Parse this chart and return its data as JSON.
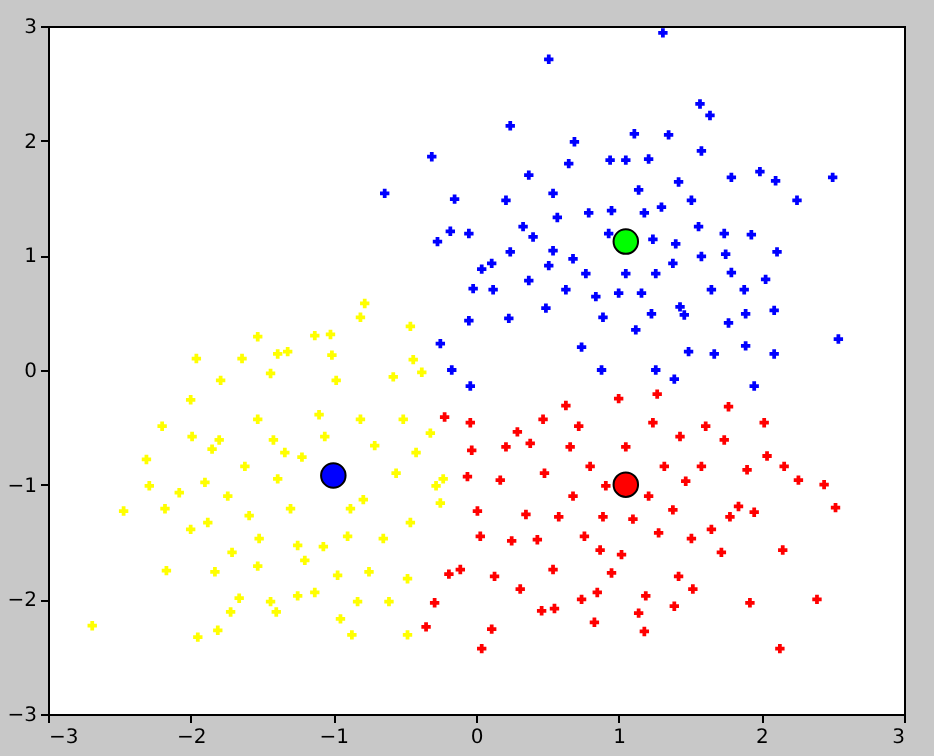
{
  "chart_data": {
    "type": "scatter",
    "xlim": [
      -3,
      3
    ],
    "ylim": [
      -3,
      3
    ],
    "xticks": [
      -3,
      -2,
      -1,
      0,
      1,
      2,
      3
    ],
    "yticks": [
      -3,
      -2,
      -1,
      0,
      1,
      2,
      3
    ],
    "series": [
      {
        "color": "#ffff00",
        "marker": "cross",
        "x": [
          -2.69,
          -2.47,
          -2.31,
          -2.2,
          -2.29,
          -2.18,
          -2.17,
          -2.08,
          -2.0,
          -1.99,
          -2.0,
          -1.96,
          -1.95,
          -1.9,
          -1.88,
          -1.85,
          -1.83,
          -1.81,
          -1.79,
          -1.8,
          -1.74,
          -1.71,
          -1.66,
          -1.72,
          -1.64,
          -1.62,
          -1.59,
          -1.53,
          -1.53,
          -1.52,
          -1.53,
          -1.44,
          -1.4,
          -1.44,
          -1.42,
          -1.39,
          -1.39,
          -1.32,
          -1.34,
          -1.3,
          -1.25,
          -1.2,
          -1.25,
          -1.22,
          -1.13,
          -1.13,
          -1.1,
          -1.06,
          -1.07,
          -1.02,
          -1.01,
          -0.98,
          -0.97,
          -0.95,
          -0.88,
          -0.9,
          -0.87,
          -0.83,
          -0.81,
          -0.81,
          -0.78,
          -0.79,
          -0.75,
          -0.71,
          -0.65,
          -0.61,
          -0.58,
          -0.56,
          -0.51,
          -0.48,
          -0.46,
          -0.44,
          -0.46,
          -0.42,
          -0.38,
          -0.32,
          -0.28,
          -0.25,
          -0.23,
          -0.48
        ],
        "values": [
          -2.23,
          -1.23,
          -0.78,
          -0.49,
          -1.01,
          -1.21,
          -1.75,
          -1.07,
          -0.26,
          -0.58,
          -1.39,
          0.1,
          -2.33,
          -0.98,
          -1.33,
          -0.69,
          -1.76,
          -2.27,
          -0.09,
          -0.61,
          -1.1,
          -1.59,
          -1.99,
          -2.11,
          0.1,
          -0.84,
          -1.27,
          0.29,
          -0.43,
          -1.47,
          -1.71,
          -2.02,
          -2.11,
          -0.03,
          -0.61,
          0.14,
          -0.95,
          0.16,
          -0.72,
          -1.21,
          -1.53,
          -1.66,
          -1.97,
          -0.76,
          -1.94,
          0.3,
          -0.39,
          -0.58,
          -1.54,
          0.31,
          0.13,
          -0.09,
          -1.79,
          -2.17,
          -1.21,
          -1.45,
          -2.31,
          -2.02,
          -0.43,
          0.46,
          0.58,
          -1.13,
          -1.76,
          -0.66,
          -1.47,
          -2.02,
          -0.06,
          -0.9,
          -0.43,
          -2.31,
          0.38,
          0.09,
          -1.33,
          -0.72,
          -0.02,
          -0.55,
          -1.01,
          -1.16,
          -0.95,
          -1.82
        ]
      },
      {
        "color": "#ff0000",
        "marker": "cross",
        "x": [
          -0.35,
          -0.29,
          -0.22,
          -0.19,
          -0.11,
          -0.06,
          -0.04,
          -0.03,
          0.03,
          0.04,
          0.01,
          0.11,
          0.13,
          0.17,
          0.21,
          0.25,
          0.29,
          0.31,
          0.35,
          0.38,
          0.43,
          0.46,
          0.47,
          0.48,
          0.54,
          0.55,
          0.58,
          0.63,
          0.66,
          0.68,
          0.72,
          0.74,
          0.76,
          0.8,
          0.83,
          0.85,
          0.87,
          0.89,
          0.91,
          0.95,
          1.0,
          1.02,
          1.05,
          1.1,
          1.14,
          1.18,
          1.19,
          1.21,
          1.24,
          1.27,
          1.28,
          1.32,
          1.38,
          1.39,
          1.42,
          1.43,
          1.47,
          1.51,
          1.52,
          1.58,
          1.61,
          1.65,
          1.72,
          1.74,
          1.77,
          1.78,
          1.84,
          1.9,
          1.92,
          1.95,
          2.02,
          2.04,
          2.13,
          2.15,
          2.16,
          2.26,
          2.39,
          2.44,
          2.52
        ],
        "values": [
          -2.24,
          -2.03,
          -0.41,
          -1.78,
          -1.74,
          -0.93,
          -0.46,
          -0.7,
          -1.45,
          -2.43,
          -1.23,
          -2.26,
          -1.8,
          -0.96,
          -0.67,
          -1.49,
          -0.54,
          -1.91,
          -1.26,
          -0.64,
          -1.48,
          -2.1,
          -0.43,
          -0.9,
          -1.74,
          -2.08,
          -1.28,
          -0.31,
          -0.67,
          -1.1,
          -0.49,
          -2.0,
          -1.45,
          -0.84,
          -2.2,
          -1.94,
          -1.57,
          -1.28,
          -1.01,
          -1.77,
          -0.25,
          -1.61,
          -0.67,
          -1.3,
          -2.12,
          -2.28,
          -1.97,
          -1.1,
          -0.46,
          -0.21,
          -1.42,
          -0.84,
          -1.22,
          -2.06,
          -1.8,
          -0.58,
          -0.97,
          -1.47,
          -1.91,
          -0.84,
          -0.49,
          -1.39,
          -1.59,
          -0.61,
          -0.32,
          -1.28,
          -1.19,
          -0.87,
          -2.03,
          -1.24,
          -0.46,
          -0.75,
          -2.43,
          -1.57,
          -0.84,
          -0.96,
          -2.0,
          -1.0,
          -1.2
        ]
      },
      {
        "color": "#0000ff",
        "marker": "cross",
        "x": [
          -0.64,
          1.31,
          0.51,
          0.24,
          1.57,
          1.64,
          -0.31,
          0.69,
          1.11,
          1.35,
          -0.15,
          -0.27,
          -0.05,
          -0.18,
          2.5,
          2.25,
          0.21,
          0.37,
          0.54,
          0.65,
          0.94,
          1.05,
          1.21,
          1.42,
          1.58,
          1.79,
          1.99,
          2.1,
          0.33,
          0.4,
          0.24,
          0.04,
          0.11,
          -0.02,
          0.12,
          -0.05,
          -0.25,
          -0.17,
          -0.04,
          0.23,
          0.37,
          0.49,
          0.54,
          0.51,
          0.57,
          0.63,
          0.68,
          0.74,
          0.77,
          0.79,
          0.84,
          0.89,
          0.93,
          0.95,
          1.0,
          1.05,
          1.12,
          1.14,
          1.16,
          1.18,
          1.24,
          1.26,
          1.23,
          1.26,
          1.3,
          1.38,
          1.4,
          1.43,
          1.46,
          1.49,
          1.51,
          1.56,
          1.58,
          1.65,
          1.67,
          1.74,
          1.75,
          1.79,
          1.77,
          1.88,
          1.89,
          1.89,
          1.93,
          2.03,
          2.09,
          2.09,
          2.11,
          1.95,
          2.54,
          1.39,
          0.88
        ],
        "values": [
          1.54,
          2.94,
          2.71,
          2.13,
          2.32,
          2.22,
          1.86,
          1.99,
          2.06,
          2.05,
          1.49,
          1.12,
          1.19,
          1.21,
          1.68,
          1.48,
          1.48,
          1.7,
          1.54,
          1.8,
          1.83,
          1.83,
          1.84,
          1.64,
          1.91,
          1.68,
          1.73,
          1.65,
          1.25,
          1.16,
          1.03,
          0.88,
          0.93,
          0.71,
          0.7,
          0.43,
          0.23,
          0.0,
          -0.14,
          0.45,
          0.78,
          0.54,
          1.04,
          0.91,
          1.33,
          0.7,
          0.97,
          0.2,
          0.84,
          1.37,
          0.64,
          0.46,
          1.19,
          1.39,
          0.67,
          0.84,
          0.35,
          1.57,
          0.67,
          1.37,
          1.14,
          0.84,
          0.49,
          0.0,
          1.42,
          0.93,
          1.1,
          0.55,
          0.48,
          0.16,
          1.48,
          1.25,
          0.99,
          0.7,
          0.14,
          1.19,
          1.01,
          0.85,
          0.41,
          0.7,
          0.49,
          0.21,
          1.18,
          0.79,
          0.52,
          0.14,
          1.03,
          -0.14,
          0.27,
          -0.08,
          0.0
        ]
      },
      {
        "color": "#0000ff",
        "marker": "circle",
        "x": [
          -1.0
        ],
        "values": [
          -0.92
        ]
      },
      {
        "color": "#ff0000",
        "marker": "circle",
        "x": [
          1.05
        ],
        "values": [
          -1.0
        ]
      },
      {
        "color": "#00ff00",
        "marker": "circle",
        "x": [
          1.05
        ],
        "values": [
          1.12
        ]
      }
    ]
  }
}
